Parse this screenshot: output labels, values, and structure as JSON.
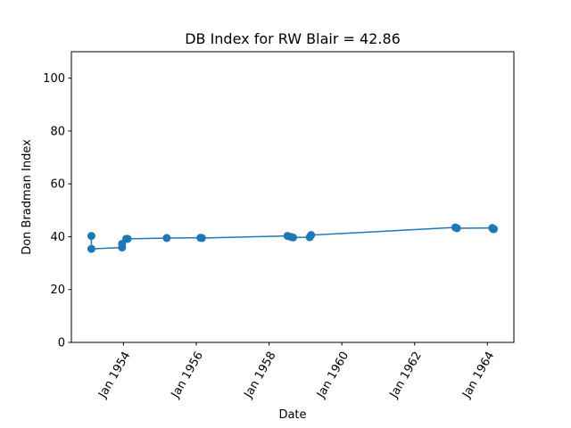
{
  "chart_data": {
    "type": "line",
    "title": "DB Index for RW Blair = 42.86",
    "xlabel": "Date",
    "ylabel": "Don Bradman Index",
    "ylim": [
      0,
      110
    ],
    "xlim": [
      "1952-07-27",
      "1964-09-23"
    ],
    "y_ticks": [
      "0",
      "20",
      "40",
      "60",
      "80",
      "100"
    ],
    "x_ticks": [
      {
        "date": "1954-01-01",
        "label": "Jan 1954"
      },
      {
        "date": "1956-01-01",
        "label": "Jan 1956"
      },
      {
        "date": "1958-01-01",
        "label": "Jan 1958"
      },
      {
        "date": "1960-01-01",
        "label": "Jan 1960"
      },
      {
        "date": "1962-01-01",
        "label": "Jan 1962"
      },
      {
        "date": "1964-01-01",
        "label": "Jan 1964"
      }
    ],
    "grid": false,
    "color": "#1f77b4",
    "series": [
      {
        "points": [
          {
            "x": "1953-02-13",
            "y": 40.3
          },
          {
            "x": "1953-02-13",
            "y": 35.4
          },
          {
            "x": "1953-12-18",
            "y": 35.9
          },
          {
            "x": "1953-12-18",
            "y": 37.3
          },
          {
            "x": "1954-01-29",
            "y": 39.2
          },
          {
            "x": "1954-02-12",
            "y": 39.2
          },
          {
            "x": "1955-03-11",
            "y": 39.5
          },
          {
            "x": "1956-02-13",
            "y": 39.6
          },
          {
            "x": "1956-02-27",
            "y": 39.5
          },
          {
            "x": "1958-07-05",
            "y": 40.3
          },
          {
            "x": "1958-08-02",
            "y": 40.0
          },
          {
            "x": "1958-08-30",
            "y": 39.7
          },
          {
            "x": "1959-02-13",
            "y": 39.8
          },
          {
            "x": "1959-02-27",
            "y": 40.6
          },
          {
            "x": "1963-02-14",
            "y": 43.5
          },
          {
            "x": "1963-03-01",
            "y": 43.2
          },
          {
            "x": "1964-02-20",
            "y": 43.3
          },
          {
            "x": "1964-02-27",
            "y": 42.9
          },
          {
            "x": "1964-03-06",
            "y": 42.86
          }
        ]
      }
    ]
  }
}
